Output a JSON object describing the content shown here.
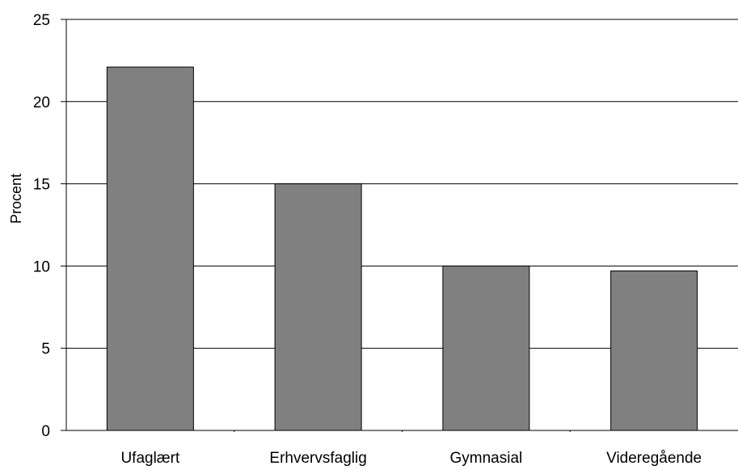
{
  "chart_data": {
    "type": "bar",
    "title": "",
    "xlabel": "",
    "ylabel": "Procent",
    "categories": [
      "Ufaglært",
      "Erhvervsfaglig",
      "Gymnasial",
      "Videregående"
    ],
    "values": [
      22.1,
      15.0,
      10.0,
      9.7
    ],
    "ylim": [
      0,
      25
    ],
    "yticks": [
      "0",
      "5",
      "10",
      "15",
      "20",
      "25"
    ],
    "grid": true,
    "legend": "none",
    "colors": {
      "bar": "#808080",
      "bar_stroke": "#000000",
      "grid": "#000000"
    }
  }
}
